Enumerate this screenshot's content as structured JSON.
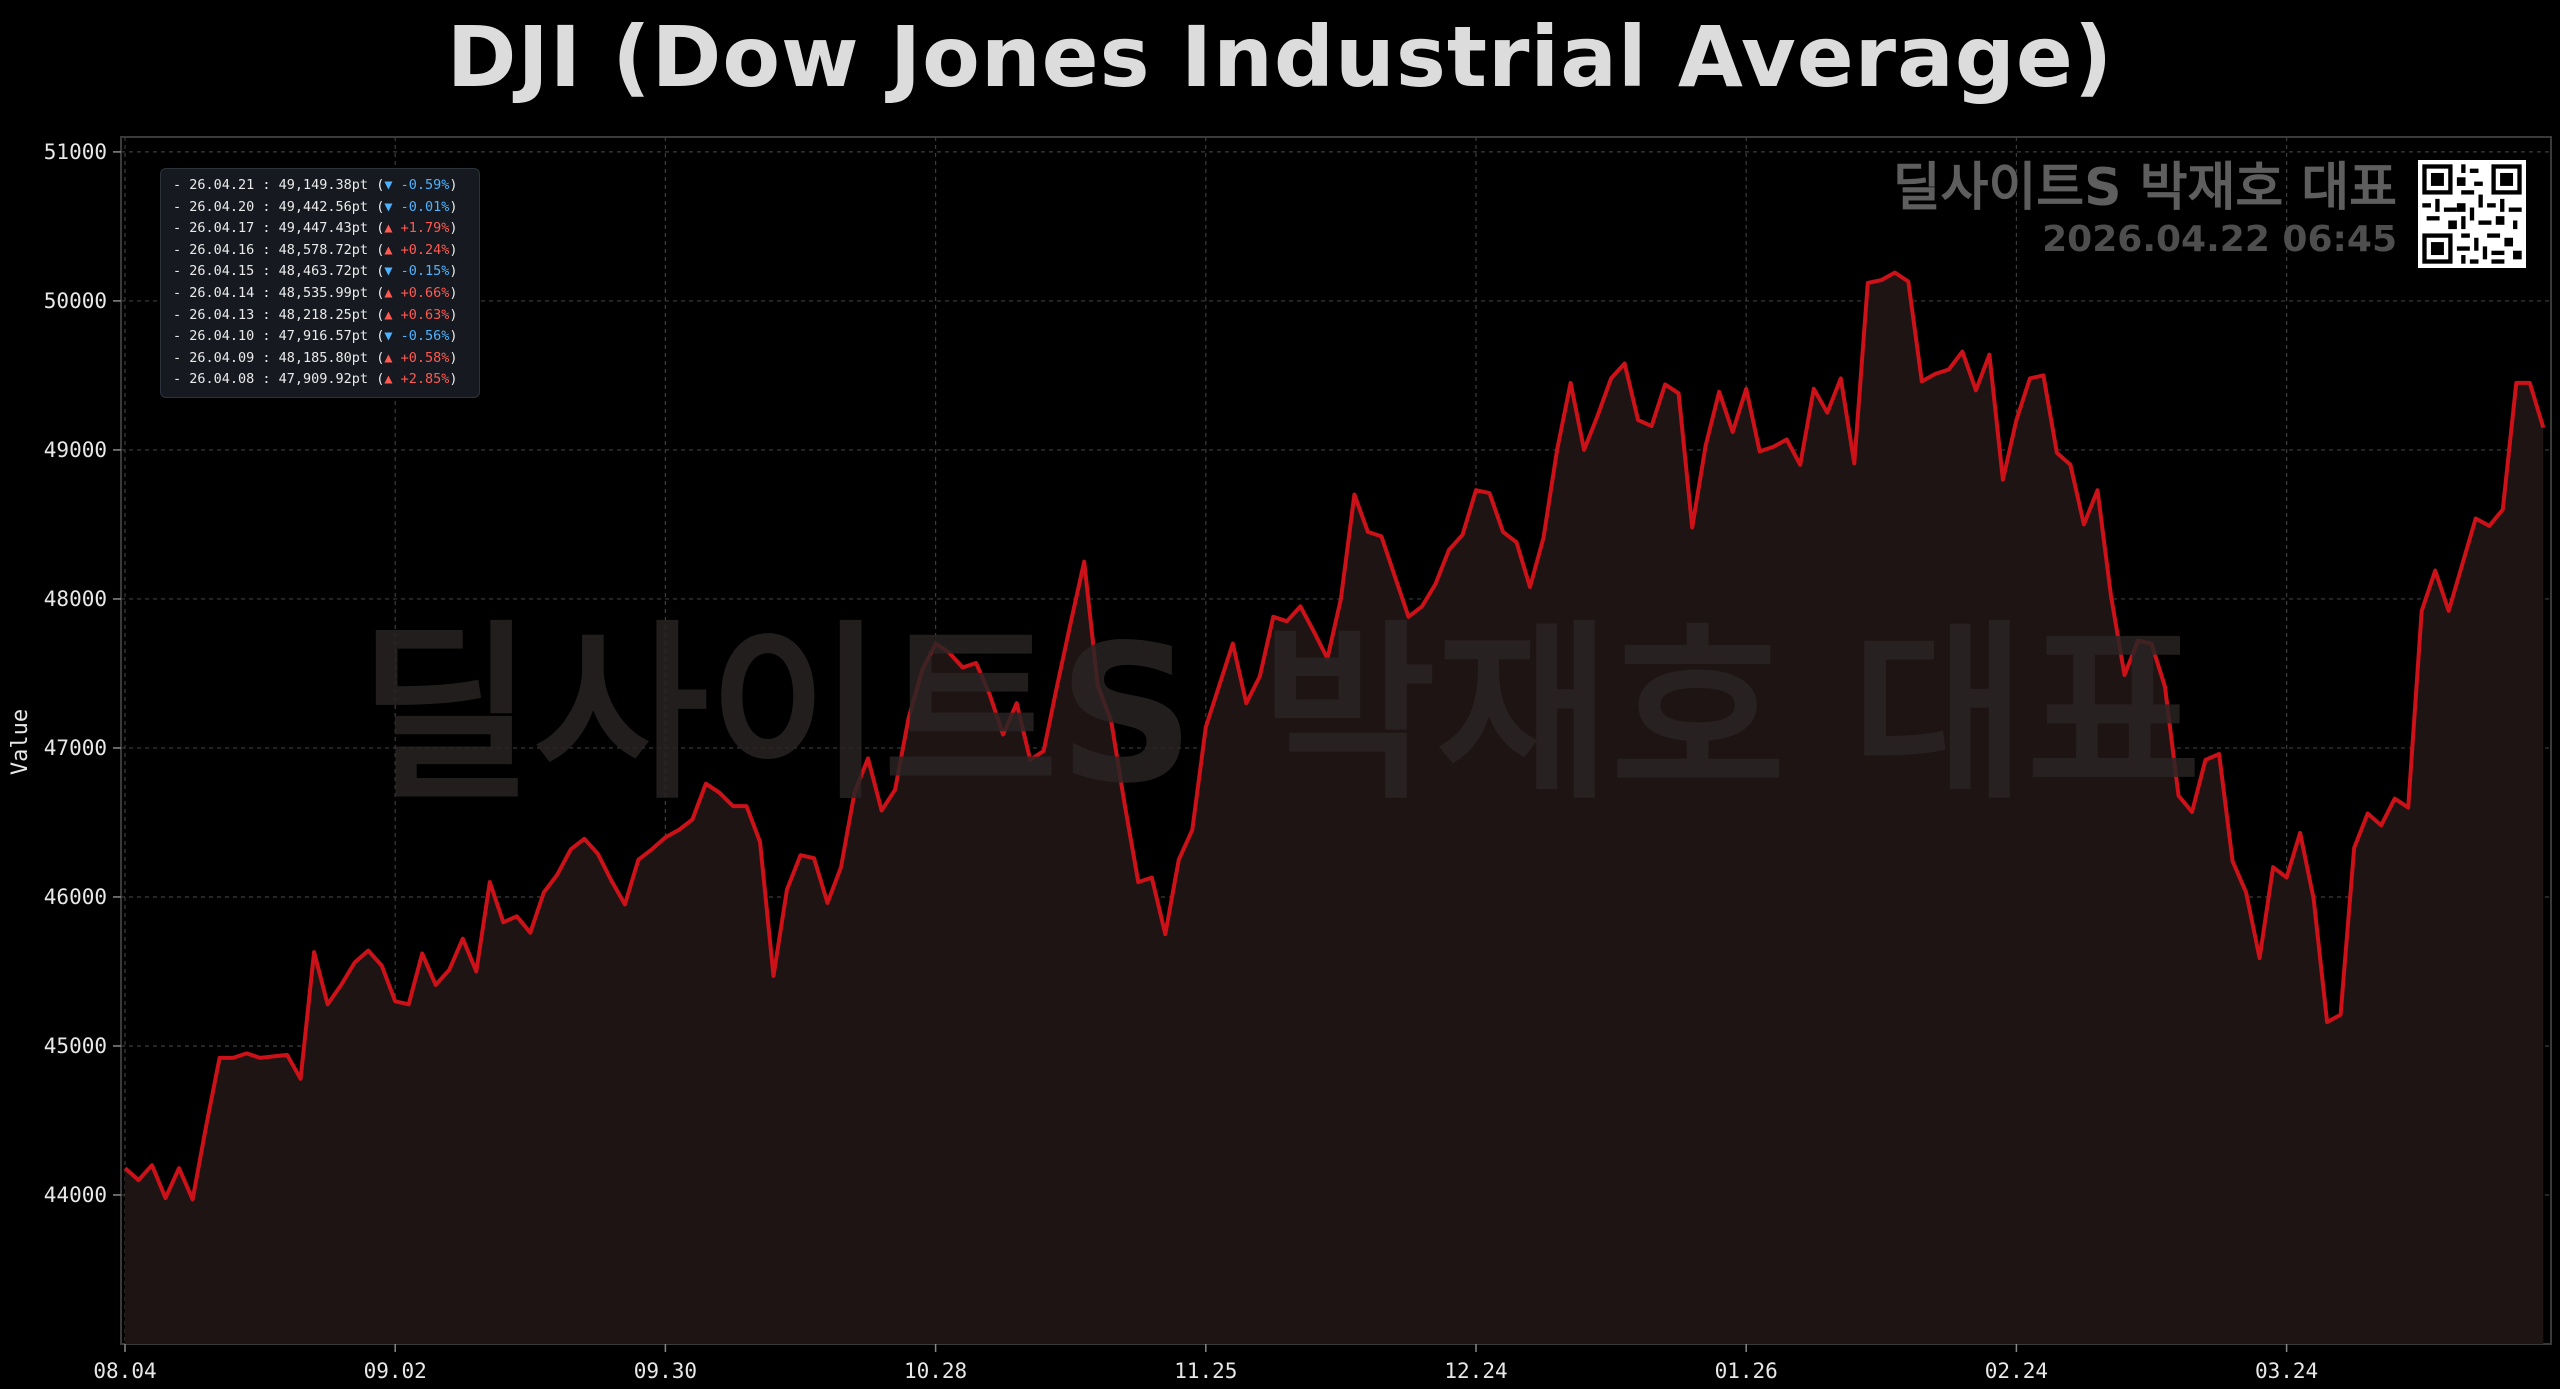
{
  "chart_data": {
    "type": "area",
    "title": "DJI (Dow Jones Industrial Average)",
    "ylabel": "Value",
    "xlabel": "",
    "ylim": [
      43000,
      51100
    ],
    "y_ticks": [
      44000,
      45000,
      46000,
      47000,
      48000,
      49000,
      50000,
      51000
    ],
    "x_tick_labels": [
      "08.04",
      "09.02",
      "09.30",
      "10.28",
      "11.25",
      "12.24",
      "01.26",
      "02.24",
      "03.24"
    ],
    "x_tick_indices": [
      0,
      20,
      40,
      60,
      80,
      100,
      120,
      140,
      160
    ],
    "grid": true,
    "line_color": "#cc1118",
    "fill_color": "#1e1414",
    "values": [
      44180,
      44100,
      44200,
      43980,
      44180,
      43970,
      44460,
      44920,
      44920,
      44950,
      44920,
      44930,
      44940,
      44780,
      45630,
      45280,
      45410,
      45560,
      45640,
      45540,
      45300,
      45280,
      45620,
      45410,
      45510,
      45720,
      45500,
      46100,
      45830,
      45870,
      45760,
      46030,
      46150,
      46320,
      46390,
      46290,
      46110,
      45950,
      46250,
      46320,
      46400,
      46450,
      46520,
      46760,
      46700,
      46610,
      46610,
      46370,
      45470,
      46050,
      46280,
      46260,
      45960,
      46200,
      46700,
      46930,
      46580,
      46720,
      47200,
      47520,
      47700,
      47640,
      47540,
      47570,
      47360,
      47090,
      47300,
      46920,
      46980,
      47420,
      47840,
      48250,
      47420,
      47180,
      46620,
      46100,
      46130,
      45750,
      46250,
      46450,
      47140,
      47420,
      47700,
      47300,
      47480,
      47880,
      47850,
      47950,
      47780,
      47600,
      48000,
      48700,
      48450,
      48420,
      48150,
      47880,
      47950,
      48100,
      48330,
      48430,
      48730,
      48710,
      48450,
      48380,
      48080,
      48410,
      49000,
      49450,
      49000,
      49230,
      49480,
      49580,
      49200,
      49160,
      49440,
      49380,
      48480,
      49030,
      49390,
      49120,
      49410,
      48990,
      49020,
      49070,
      48900,
      49410,
      49250,
      49480,
      48910,
      50120,
      50140,
      50190,
      50130,
      49460,
      49510,
      49540,
      49660,
      49400,
      49640,
      48800,
      49200,
      49480,
      49500,
      48980,
      48900,
      48500,
      48730,
      48020,
      47490,
      47720,
      47700,
      47410,
      46680,
      46570,
      46920,
      46960,
      46240,
      46030,
      45590,
      46200,
      46130,
      46430,
      45990,
      45160,
      45210,
      46330,
      46560,
      46480,
      46660,
      46600,
      47920,
      48190,
      47920,
      48230,
      48540,
      48490,
      48600,
      49450,
      49450,
      49150
    ]
  },
  "legend": {
    "entries": [
      {
        "text": "- 26.04.21 : 49,149.38pt (",
        "change": "▼ -0.59%",
        "dir": "down"
      },
      {
        "text": "- 26.04.20 : 49,442.56pt (",
        "change": "▼ -0.01%",
        "dir": "down"
      },
      {
        "text": "- 26.04.17 : 49,447.43pt (",
        "change": "▲ +1.79%",
        "dir": "up"
      },
      {
        "text": "- 26.04.16 : 48,578.72pt (",
        "change": "▲ +0.24%",
        "dir": "up"
      },
      {
        "text": "- 26.04.15 : 48,463.72pt (",
        "change": "▼ -0.15%",
        "dir": "down"
      },
      {
        "text": "- 26.04.14 : 48,535.99pt (",
        "change": "▲ +0.66%",
        "dir": "up"
      },
      {
        "text": "- 26.04.13 : 48,218.25pt (",
        "change": "▲ +0.63%",
        "dir": "up"
      },
      {
        "text": "- 26.04.10 : 47,916.57pt (",
        "change": "▼ -0.56%",
        "dir": "down"
      },
      {
        "text": "- 26.04.09 : 48,185.80pt (",
        "change": "▲ +0.58%",
        "dir": "up"
      },
      {
        "text": "- 26.04.08 : 47,909.92pt (",
        "change": "▲ +2.85%",
        "dir": "up"
      }
    ],
    "close_paren": ")"
  },
  "brand": {
    "name": "딜사이트S 박재호 대표",
    "timestamp": "2026.04.22 06:45"
  },
  "watermark": "딜사이트S 박재호 대표",
  "qr_icon": "qr-code-icon"
}
